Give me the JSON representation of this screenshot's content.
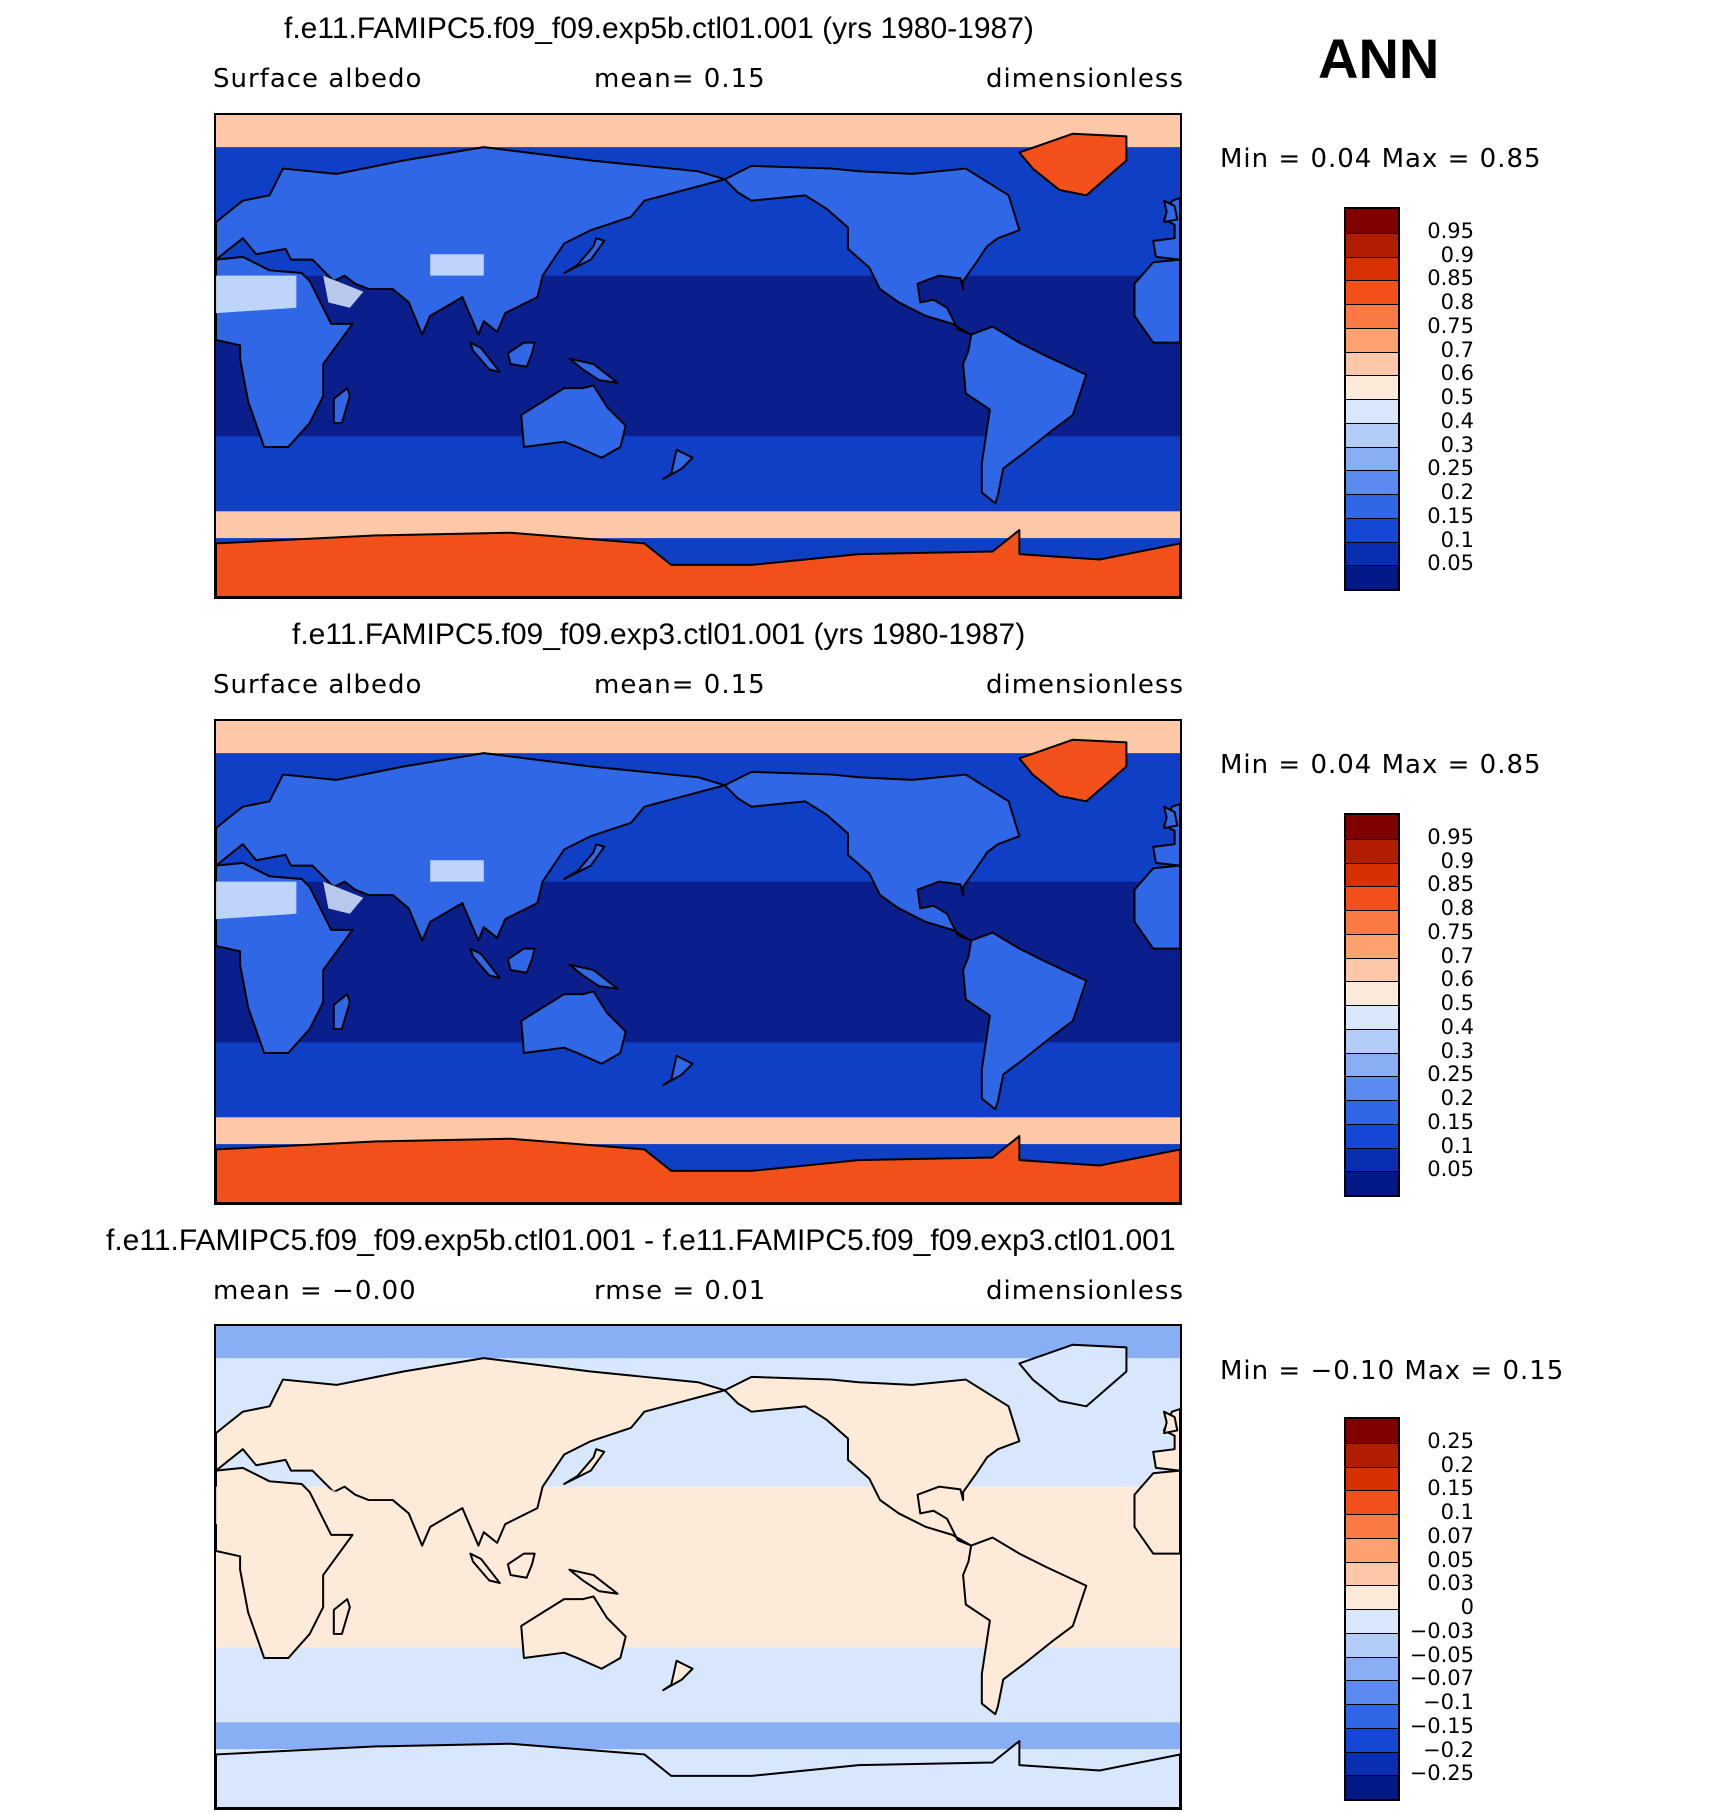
{
  "page_label": "ANN",
  "panels": [
    {
      "title": "f.e11.FAMIPC5.f09_f09.exp5b.ctl01.001 (yrs 1980-1987)",
      "variable": "Surface  albedo",
      "stat": "mean=    0.15",
      "units": "dimensionless",
      "minmax": "Min  =     0.04  Max  =     0.85",
      "colorbar": {
        "labels": [
          "0.95",
          "0.9",
          "0.85",
          "0.8",
          "0.75",
          "0.7",
          "0.6",
          "0.5",
          "0.4",
          "0.3",
          "0.25",
          "0.2",
          "0.15",
          "0.1",
          "0.05"
        ],
        "colors": [
          "#800000",
          "#b11d00",
          "#d83000",
          "#f2501a",
          "#fb7a44",
          "#fca26f",
          "#fdc8a8",
          "#feead8",
          "#d8e7fb",
          "#b2cdf7",
          "#88aef3",
          "#5b8bef",
          "#2f67e6",
          "#1447d4",
          "#0a2eb2",
          "#001a85"
        ]
      },
      "map_palette": {
        "ocean_tropical": "#0a1f8c",
        "ocean_midlat": "#0f3fc4",
        "land": "#2f67e6",
        "sea_ice": "#fdc8a8",
        "ice": "#f2501a",
        "desert": "#d8e7fb"
      }
    },
    {
      "title": "f.e11.FAMIPC5.f09_f09.exp3.ctl01.001 (yrs 1980-1987)",
      "variable": "Surface  albedo",
      "stat": "mean=    0.15",
      "units": "dimensionless",
      "minmax": "Min  =     0.04  Max  =     0.85",
      "colorbar": {
        "labels": [
          "0.95",
          "0.9",
          "0.85",
          "0.8",
          "0.75",
          "0.7",
          "0.6",
          "0.5",
          "0.4",
          "0.3",
          "0.25",
          "0.2",
          "0.15",
          "0.1",
          "0.05"
        ],
        "colors": [
          "#800000",
          "#b11d00",
          "#d83000",
          "#f2501a",
          "#fb7a44",
          "#fca26f",
          "#fdc8a8",
          "#feead8",
          "#d8e7fb",
          "#b2cdf7",
          "#88aef3",
          "#5b8bef",
          "#2f67e6",
          "#1447d4",
          "#0a2eb2",
          "#001a85"
        ]
      },
      "map_palette": {
        "ocean_tropical": "#0a1f8c",
        "ocean_midlat": "#0f3fc4",
        "land": "#2f67e6",
        "sea_ice": "#fdc8a8",
        "ice": "#f2501a",
        "desert": "#d8e7fb"
      }
    },
    {
      "title": "f.e11.FAMIPC5.f09_f09.exp5b.ctl01.001 - f.e11.FAMIPC5.f09_f09.exp3.ctl01.001",
      "variable": "mean  =   −0.00",
      "stat": "rmse  =    0.01",
      "units": "dimensionless",
      "minmax": "Min  =   −0.10  Max  =     0.15",
      "colorbar": {
        "labels": [
          "0.25",
          "0.2",
          "0.15",
          "0.1",
          "0.07",
          "0.05",
          "0.03",
          "0",
          "−0.03",
          "−0.05",
          "−0.07",
          "−0.1",
          "−0.15",
          "−0.2",
          "−0.25"
        ],
        "colors": [
          "#800000",
          "#b11d00",
          "#d83000",
          "#f2501a",
          "#fb7a44",
          "#fca26f",
          "#fdc8a8",
          "#feead8",
          "#d8e7fb",
          "#b2cdf7",
          "#88aef3",
          "#5b8bef",
          "#2f67e6",
          "#1447d4",
          "#0a2eb2",
          "#001a85"
        ]
      },
      "map_palette": {
        "ocean_tropical": "#feead8",
        "ocean_midlat": "#d8e7fb",
        "land": "#feead8",
        "sea_ice": "#88aef3",
        "ice": "#d8e7fb",
        "desert": "#feead8"
      }
    }
  ]
}
